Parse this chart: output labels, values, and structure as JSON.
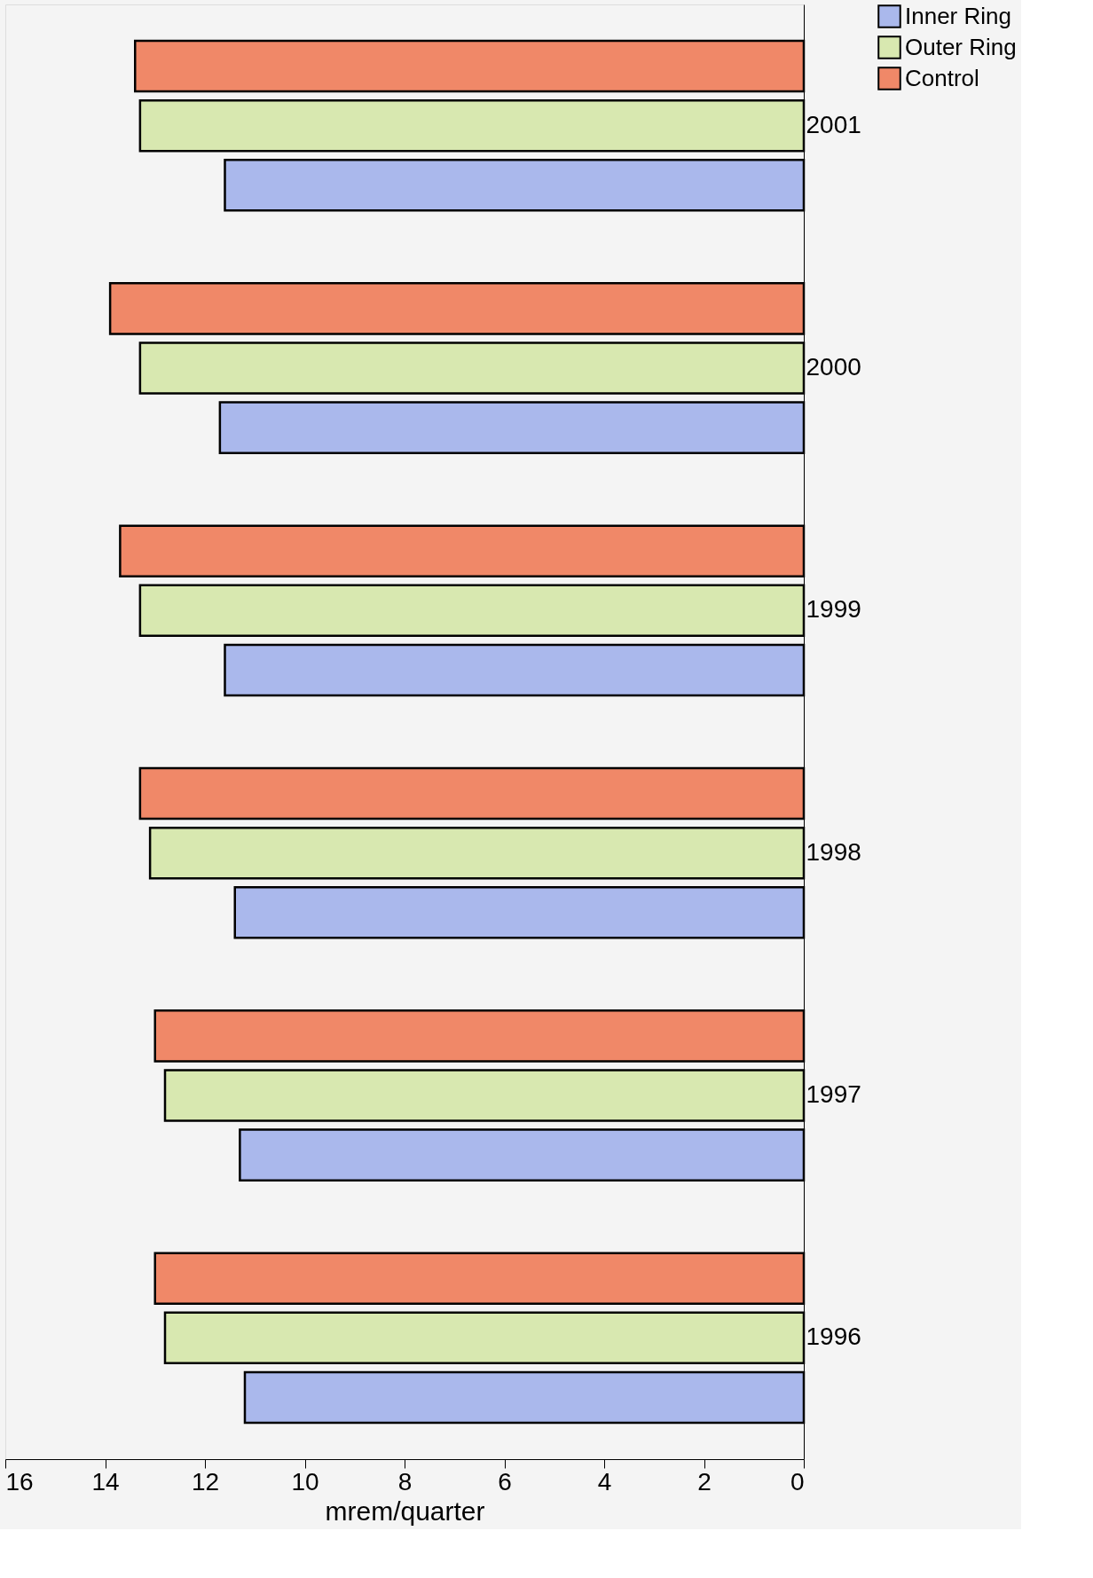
{
  "chart_data": {
    "type": "bar",
    "orientation": "horizontal",
    "xlabel": "mrem/quarter",
    "categories": [
      "2001",
      "2000",
      "1999",
      "1998",
      "1997",
      "1996"
    ],
    "series": [
      {
        "name": "Inner Ring",
        "color": "#aab8ec",
        "values": [
          11.6,
          11.7,
          11.6,
          11.4,
          11.3,
          11.2
        ]
      },
      {
        "name": "Outer Ring",
        "color": "#d8e8b0",
        "values": [
          13.3,
          13.3,
          13.3,
          13.1,
          12.8,
          12.8
        ]
      },
      {
        "name": "Control",
        "color": "#f08868",
        "values": [
          13.4,
          13.9,
          13.7,
          13.3,
          13.0,
          13.0
        ]
      }
    ],
    "xlim": [
      16,
      0
    ],
    "xticks": [
      0,
      2,
      4,
      6,
      8,
      10,
      12,
      14,
      16
    ],
    "grid": false,
    "legend": "right"
  }
}
